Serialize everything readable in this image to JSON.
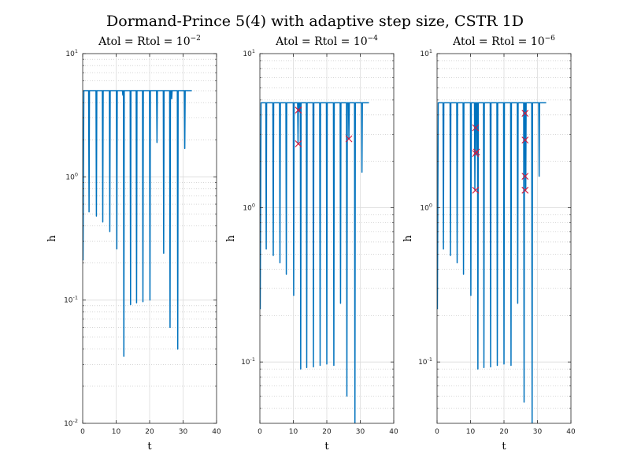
{
  "figure": {
    "title": "Dormand-Prince 5(4) with adaptive step size, CSTR 1D",
    "colors": {
      "line": "#0072bd",
      "marker": "#d6183a",
      "grid": "#bdbdbd",
      "axis": "#262626"
    }
  },
  "chart_data": [
    {
      "type": "line",
      "title_base": "Atol = Rtol = 10",
      "title_exp": "−2",
      "xlabel": "t",
      "ylabel": "h",
      "yscale": "log",
      "xlim": [
        0,
        40
      ],
      "ylim": [
        0.01,
        10
      ],
      "xticks": [
        "0",
        "10",
        "20",
        "30",
        "40"
      ],
      "yticks": [
        {
          "value": 0.01,
          "base": "10",
          "exp": "-2"
        },
        {
          "value": 0.1,
          "base": "10",
          "exp": "-1"
        },
        {
          "value": 1,
          "base": "10",
          "exp": "0"
        },
        {
          "value": 10,
          "base": "10",
          "exp": "1"
        }
      ],
      "grid": true,
      "series": [
        {
          "plateau": 5.0,
          "x_start": 0.1,
          "h_start": 0.21,
          "t_first_plateau": 0.35,
          "x_end": 32.6,
          "dips": [
            {
              "t": 1.9,
              "h": 0.52
            },
            {
              "t": 4.1,
              "h": 0.48
            },
            {
              "t": 6.0,
              "h": 0.43
            },
            {
              "t": 8.1,
              "h": 0.36
            },
            {
              "t": 10.2,
              "h": 0.26
            },
            {
              "t": 12.0,
              "h": 4.6
            },
            {
              "t": 12.3,
              "h": 0.035
            },
            {
              "t": 14.3,
              "h": 0.092
            },
            {
              "t": 16.1,
              "h": 0.095
            },
            {
              "t": 18.0,
              "h": 0.097
            },
            {
              "t": 20.1,
              "h": 0.1
            },
            {
              "t": 22.2,
              "h": 1.9
            },
            {
              "t": 24.2,
              "h": 0.24
            },
            {
              "t": 26.1,
              "h": 0.06
            },
            {
              "t": 26.6,
              "h": 4.3
            },
            {
              "t": 28.4,
              "h": 0.04
            },
            {
              "t": 30.5,
              "h": 1.7
            }
          ]
        }
      ],
      "rejected": []
    },
    {
      "type": "line",
      "title_base": "Atol = Rtol = 10",
      "title_exp": "−4",
      "xlabel": "t",
      "ylabel": "h",
      "yscale": "log",
      "xlim": [
        0,
        40
      ],
      "ylim": [
        0.04,
        10
      ],
      "xticks": [
        "0",
        "10",
        "20",
        "30",
        "40"
      ],
      "yticks": [
        {
          "value": 0.1,
          "base": "10",
          "exp": "-1"
        },
        {
          "value": 1,
          "base": "10",
          "exp": "0"
        },
        {
          "value": 10,
          "base": "10",
          "exp": "1"
        }
      ],
      "grid": true,
      "series": [
        {
          "plateau": 4.8,
          "x_start": 0.1,
          "h_start": 0.22,
          "t_first_plateau": 0.35,
          "x_end": 32.6,
          "dips": [
            {
              "t": 1.9,
              "h": 0.54
            },
            {
              "t": 4.0,
              "h": 0.49
            },
            {
              "t": 6.0,
              "h": 0.44
            },
            {
              "t": 7.9,
              "h": 0.37
            },
            {
              "t": 10.1,
              "h": 0.27
            },
            {
              "t": 11.4,
              "h": 2.6
            },
            {
              "t": 11.9,
              "h": 4.2
            },
            {
              "t": 12.2,
              "h": 0.09
            },
            {
              "t": 14.0,
              "h": 0.092
            },
            {
              "t": 16.0,
              "h": 0.093
            },
            {
              "t": 18.0,
              "h": 0.095
            },
            {
              "t": 20.0,
              "h": 0.097
            },
            {
              "t": 22.1,
              "h": 0.095
            },
            {
              "t": 24.1,
              "h": 0.24
            },
            {
              "t": 26.0,
              "h": 0.06
            },
            {
              "t": 26.6,
              "h": 2.8
            },
            {
              "t": 28.4,
              "h": 0.035
            },
            {
              "t": 30.5,
              "h": 1.7
            }
          ]
        }
      ],
      "rejected": [
        {
          "t": 11.5,
          "h": 4.3
        },
        {
          "t": 11.5,
          "h": 2.6
        },
        {
          "t": 26.6,
          "h": 2.8
        }
      ]
    },
    {
      "type": "line",
      "title_base": "Atol = Rtol = 10",
      "title_exp": "−6",
      "xlabel": "t",
      "ylabel": "h",
      "yscale": "log",
      "xlim": [
        0,
        40
      ],
      "ylim": [
        0.04,
        10
      ],
      "xticks": [
        "0",
        "10",
        "20",
        "30",
        "40"
      ],
      "yticks": [
        {
          "value": 0.1,
          "base": "10",
          "exp": "-1"
        },
        {
          "value": 1,
          "base": "10",
          "exp": "0"
        },
        {
          "value": 10,
          "base": "10",
          "exp": "1"
        }
      ],
      "grid": true,
      "series": [
        {
          "plateau": 4.8,
          "x_start": 0.1,
          "h_start": 0.22,
          "t_first_plateau": 0.35,
          "x_end": 32.6,
          "dips": [
            {
              "t": 1.9,
              "h": 0.54
            },
            {
              "t": 4.0,
              "h": 0.49
            },
            {
              "t": 6.0,
              "h": 0.44
            },
            {
              "t": 7.9,
              "h": 0.37
            },
            {
              "t": 10.1,
              "h": 0.27
            },
            {
              "t": 11.3,
              "h": 1.3
            },
            {
              "t": 11.8,
              "h": 2.2
            },
            {
              "t": 12.2,
              "h": 0.09
            },
            {
              "t": 14.0,
              "h": 0.092
            },
            {
              "t": 16.0,
              "h": 0.093
            },
            {
              "t": 18.0,
              "h": 0.095
            },
            {
              "t": 20.0,
              "h": 0.097
            },
            {
              "t": 22.1,
              "h": 0.095
            },
            {
              "t": 24.1,
              "h": 0.24
            },
            {
              "t": 26.0,
              "h": 0.055
            },
            {
              "t": 26.5,
              "h": 1.3
            },
            {
              "t": 28.4,
              "h": 0.035
            },
            {
              "t": 30.5,
              "h": 1.6
            }
          ]
        }
      ],
      "rejected": [
        {
          "t": 11.5,
          "h": 3.3
        },
        {
          "t": 11.5,
          "h": 2.25
        },
        {
          "t": 11.8,
          "h": 2.3
        },
        {
          "t": 11.5,
          "h": 1.3
        },
        {
          "t": 26.3,
          "h": 4.1
        },
        {
          "t": 26.3,
          "h": 2.75
        },
        {
          "t": 26.3,
          "h": 1.6
        },
        {
          "t": 26.3,
          "h": 1.3
        }
      ]
    }
  ]
}
